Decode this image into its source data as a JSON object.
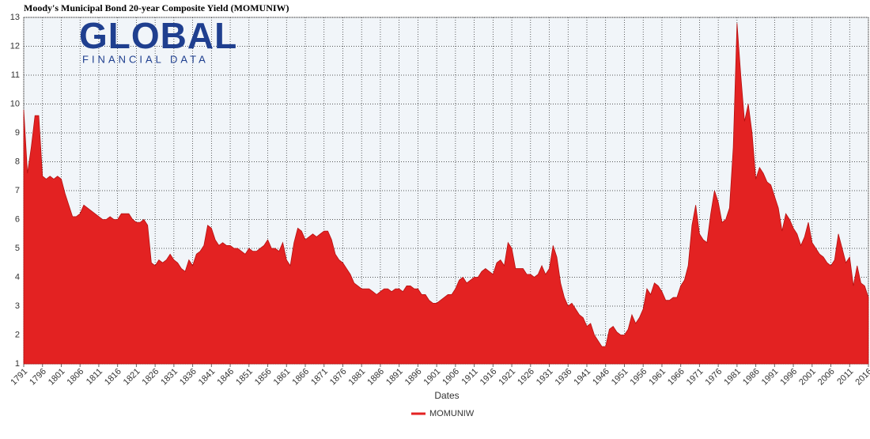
{
  "chart_data": {
    "type": "area",
    "title": "Moody's Municipal Bond 20-year Composite Yield (MOMUNIW)",
    "x_label": "Dates",
    "x": [
      1791,
      1792,
      1793,
      1794,
      1795,
      1796,
      1797,
      1798,
      1799,
      1800,
      1801,
      1802,
      1803,
      1804,
      1805,
      1806,
      1807,
      1808,
      1809,
      1810,
      1811,
      1812,
      1813,
      1814,
      1815,
      1816,
      1817,
      1818,
      1819,
      1820,
      1821,
      1822,
      1823,
      1824,
      1825,
      1826,
      1827,
      1828,
      1829,
      1830,
      1831,
      1832,
      1833,
      1834,
      1835,
      1836,
      1837,
      1838,
      1839,
      1840,
      1841,
      1842,
      1843,
      1844,
      1845,
      1846,
      1847,
      1848,
      1849,
      1850,
      1851,
      1852,
      1853,
      1854,
      1855,
      1856,
      1857,
      1858,
      1859,
      1860,
      1861,
      1862,
      1863,
      1864,
      1865,
      1866,
      1867,
      1868,
      1869,
      1870,
      1871,
      1872,
      1873,
      1874,
      1875,
      1876,
      1877,
      1878,
      1879,
      1880,
      1881,
      1882,
      1883,
      1884,
      1885,
      1886,
      1887,
      1888,
      1889,
      1890,
      1891,
      1892,
      1893,
      1894,
      1895,
      1896,
      1897,
      1898,
      1899,
      1900,
      1901,
      1902,
      1903,
      1904,
      1905,
      1906,
      1907,
      1908,
      1909,
      1910,
      1911,
      1912,
      1913,
      1914,
      1915,
      1916,
      1917,
      1918,
      1919,
      1920,
      1921,
      1922,
      1923,
      1924,
      1925,
      1926,
      1927,
      1928,
      1929,
      1930,
      1931,
      1932,
      1933,
      1934,
      1935,
      1936,
      1937,
      1938,
      1939,
      1940,
      1941,
      1942,
      1943,
      1944,
      1945,
      1946,
      1947,
      1948,
      1949,
      1950,
      1951,
      1952,
      1953,
      1954,
      1955,
      1956,
      1957,
      1958,
      1959,
      1960,
      1961,
      1962,
      1963,
      1964,
      1965,
      1966,
      1967,
      1968,
      1969,
      1970,
      1971,
      1972,
      1973,
      1974,
      1975,
      1976,
      1977,
      1978,
      1979,
      1980,
      1981,
      1982,
      1983,
      1984,
      1985,
      1986,
      1987,
      1988,
      1989,
      1990,
      1991,
      1992,
      1993,
      1994,
      1995,
      1996,
      1997,
      1998,
      1999,
      2000,
      2001,
      2002,
      2003,
      2004,
      2005,
      2006,
      2007,
      2008,
      2009,
      2010,
      2011,
      2012,
      2013,
      2014,
      2015,
      2016
    ],
    "series": [
      {
        "name": "MOMUNIW",
        "color": "#e32222",
        "values": [
          9.8,
          7.6,
          8.5,
          9.6,
          9.6,
          7.5,
          7.4,
          7.5,
          7.4,
          7.5,
          7.4,
          6.9,
          6.5,
          6.1,
          6.1,
          6.2,
          6.5,
          6.4,
          6.3,
          6.2,
          6.1,
          6.0,
          6.0,
          6.1,
          6.0,
          6.0,
          6.2,
          6.2,
          6.2,
          6.0,
          5.9,
          5.9,
          6.0,
          5.8,
          4.5,
          4.4,
          4.6,
          4.5,
          4.6,
          4.8,
          4.6,
          4.5,
          4.3,
          4.2,
          4.6,
          4.4,
          4.8,
          4.9,
          5.1,
          5.8,
          5.7,
          5.3,
          5.1,
          5.2,
          5.1,
          5.1,
          5.0,
          5.0,
          4.9,
          4.8,
          5.0,
          4.9,
          4.9,
          5.0,
          5.1,
          5.3,
          5.0,
          5.0,
          4.9,
          5.2,
          4.6,
          4.4,
          5.2,
          5.7,
          5.6,
          5.3,
          5.4,
          5.5,
          5.4,
          5.5,
          5.6,
          5.6,
          5.3,
          4.8,
          4.6,
          4.5,
          4.3,
          4.1,
          3.8,
          3.7,
          3.6,
          3.6,
          3.6,
          3.5,
          3.4,
          3.5,
          3.6,
          3.6,
          3.5,
          3.6,
          3.6,
          3.5,
          3.7,
          3.7,
          3.6,
          3.6,
          3.4,
          3.4,
          3.2,
          3.1,
          3.1,
          3.2,
          3.3,
          3.4,
          3.4,
          3.6,
          3.9,
          4.0,
          3.8,
          3.9,
          4.0,
          4.0,
          4.2,
          4.3,
          4.2,
          4.1,
          4.5,
          4.6,
          4.4,
          5.2,
          5.0,
          4.3,
          4.3,
          4.3,
          4.1,
          4.1,
          4.0,
          4.1,
          4.4,
          4.1,
          4.3,
          5.1,
          4.7,
          3.8,
          3.3,
          3.0,
          3.1,
          2.9,
          2.7,
          2.6,
          2.3,
          2.4,
          2.0,
          1.8,
          1.6,
          1.6,
          2.2,
          2.3,
          2.1,
          2.0,
          2.0,
          2.2,
          2.7,
          2.4,
          2.6,
          2.9,
          3.6,
          3.4,
          3.8,
          3.7,
          3.5,
          3.2,
          3.2,
          3.3,
          3.3,
          3.7,
          3.9,
          4.4,
          5.8,
          6.5,
          5.5,
          5.3,
          5.2,
          6.2,
          7.0,
          6.6,
          5.9,
          6.0,
          6.4,
          8.5,
          12.8,
          11.0,
          9.4,
          10.0,
          9.0,
          7.4,
          7.8,
          7.6,
          7.3,
          7.2,
          6.8,
          6.4,
          5.6,
          6.2,
          6.0,
          5.7,
          5.5,
          5.1,
          5.4,
          5.9,
          5.2,
          5.0,
          4.8,
          4.7,
          4.5,
          4.4,
          4.6,
          5.5,
          5.0,
          4.5,
          4.7,
          3.7,
          4.4,
          3.8,
          3.7,
          3.3
        ]
      }
    ],
    "xlim": [
      1791,
      2016
    ],
    "xticks": [
      1791,
      1796,
      1801,
      1806,
      1811,
      1816,
      1821,
      1826,
      1831,
      1836,
      1841,
      1846,
      1851,
      1856,
      1861,
      1866,
      1871,
      1876,
      1881,
      1886,
      1891,
      1896,
      1901,
      1906,
      1911,
      1916,
      1921,
      1926,
      1931,
      1936,
      1941,
      1946,
      1951,
      1956,
      1961,
      1966,
      1971,
      1976,
      1981,
      1986,
      1991,
      1996,
      2001,
      2006,
      2011,
      2016
    ],
    "ylim": [
      1,
      13
    ],
    "yticks": [
      1,
      2,
      3,
      4,
      5,
      6,
      7,
      8,
      9,
      10,
      11,
      12,
      13
    ],
    "grid": true,
    "legend": "bottom"
  },
  "logo": {
    "word": "GLOBAL",
    "tagline": "FINANCIAL DATA"
  }
}
